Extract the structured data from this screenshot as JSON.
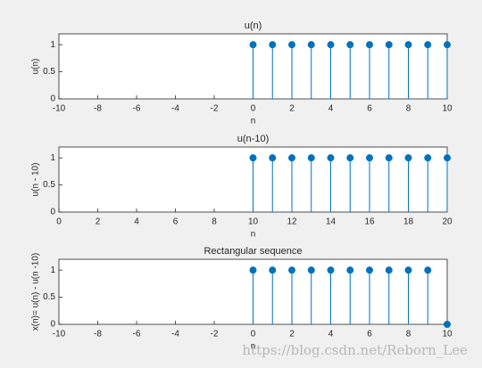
{
  "chart_data": [
    {
      "type": "stem",
      "title": "u(n)",
      "xlabel": "n",
      "ylabel": "u(n)",
      "x": [
        0,
        1,
        2,
        3,
        4,
        5,
        6,
        7,
        8,
        9,
        10
      ],
      "values": [
        1,
        1,
        1,
        1,
        1,
        1,
        1,
        1,
        1,
        1,
        1
      ],
      "color": "#0072bd",
      "xlim": [
        -10,
        10
      ],
      "xticks": [
        -10,
        -8,
        -6,
        -4,
        -2,
        0,
        2,
        4,
        6,
        8,
        10
      ],
      "ylim": [
        0,
        1.2
      ],
      "yticks": [
        0,
        0.5,
        1
      ]
    },
    {
      "type": "stem",
      "title": "u(n-10)",
      "xlabel": "n",
      "ylabel": "u(n - 10)",
      "x": [
        10,
        11,
        12,
        13,
        14,
        15,
        16,
        17,
        18,
        19,
        20
      ],
      "values": [
        1,
        1,
        1,
        1,
        1,
        1,
        1,
        1,
        1,
        1,
        1
      ],
      "color": "#0072bd",
      "xlim": [
        0,
        20
      ],
      "xticks": [
        0,
        2,
        4,
        6,
        8,
        10,
        12,
        14,
        16,
        18,
        20
      ],
      "ylim": [
        0,
        1.2
      ],
      "yticks": [
        0,
        0.5,
        1
      ]
    },
    {
      "type": "stem",
      "title": "Rectangular sequence",
      "xlabel": "n",
      "ylabel": "x(n)= u(n) - u(n -10)",
      "x": [
        0,
        1,
        2,
        3,
        4,
        5,
        6,
        7,
        8,
        9,
        10
      ],
      "values": [
        1,
        1,
        1,
        1,
        1,
        1,
        1,
        1,
        1,
        1,
        0
      ],
      "color": "#0072bd",
      "xlim": [
        -10,
        10
      ],
      "xticks": [
        -10,
        -8,
        -6,
        -4,
        -2,
        0,
        2,
        4,
        6,
        8,
        10
      ],
      "ylim": [
        0,
        1.2
      ],
      "yticks": [
        0,
        0.5,
        1
      ]
    }
  ],
  "watermark": "https://blog.csdn.net/Reborn_Lee"
}
